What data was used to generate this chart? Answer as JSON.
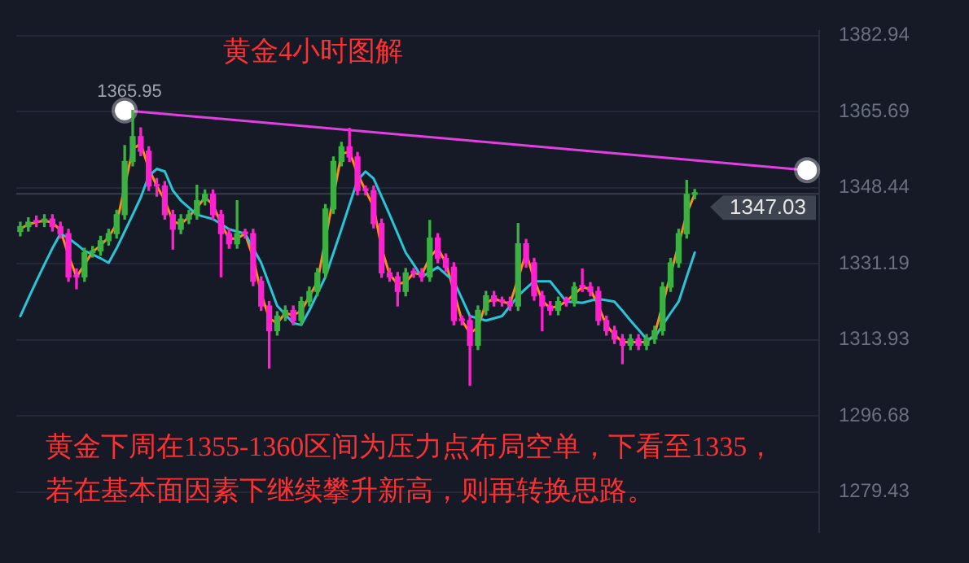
{
  "chart_data": {
    "type": "candlestick",
    "title": "黄金4小时图解",
    "annotations": [
      {
        "text": "1365.95",
        "y": 1365.95
      },
      "黄金下周在1355-1360区间为压力点布局空单，下看至1335，",
      "若在基本面因素下继续攀升新高，则再转换思路。"
    ],
    "categories": [
      null,
      null,
      null,
      null,
      null,
      null,
      null,
      null,
      null,
      null,
      null,
      null,
      null,
      null,
      null,
      null,
      null,
      null,
      null,
      null,
      null,
      null,
      null,
      null,
      null,
      null,
      null,
      null,
      null,
      null,
      null,
      null,
      null,
      null,
      null,
      null,
      null,
      null,
      null,
      null,
      null,
      null,
      null,
      null,
      null,
      null,
      null,
      null,
      null,
      null,
      null,
      null,
      null,
      null,
      null,
      null,
      null,
      null,
      null,
      null,
      null,
      null,
      null,
      null,
      null,
      null,
      null,
      null,
      null,
      null,
      null,
      null,
      null,
      null,
      null,
      null,
      null,
      null,
      null,
      null,
      null,
      null,
      null,
      null,
      null,
      null,
      null,
      null,
      null,
      null,
      null,
      null,
      null,
      null,
      null,
      null,
      null,
      null,
      null,
      null
    ],
    "ohlc": [
      [
        1338.5,
        1340.6,
        1337.5,
        1339.6
      ],
      [
        1339.6,
        1341.6,
        1338.6,
        1340.6
      ],
      [
        1340.6,
        1342.0,
        1339.6,
        1340.6
      ],
      [
        1340.6,
        1342.3,
        1339.6,
        1341.3
      ],
      [
        1341.3,
        1342.3,
        1338.6,
        1339.6
      ],
      [
        1339.6,
        1340.6,
        1337.0,
        1338.0
      ],
      [
        1338.0,
        1339.0,
        1327.2,
        1328.2
      ],
      [
        1328.2,
        1330.0,
        1325.5,
        1328.2
      ],
      [
        1328.2,
        1334.7,
        1327.2,
        1333.7
      ],
      [
        1333.7,
        1335.1,
        1332.7,
        1334.1
      ],
      [
        1334.1,
        1337.4,
        1333.1,
        1336.4
      ],
      [
        1336.4,
        1339.0,
        1335.4,
        1338.0
      ],
      [
        1338.0,
        1343.3,
        1337.0,
        1342.3
      ],
      [
        1342.3,
        1358.0,
        1341.3,
        1354.4
      ],
      [
        1354.4,
        1365.95,
        1353.4,
        1360.0
      ],
      [
        1360.0,
        1362.0,
        1355.7,
        1356.7
      ],
      [
        1356.7,
        1357.7,
        1347.8,
        1348.8
      ],
      [
        1348.8,
        1350.5,
        1346.5,
        1348.8
      ],
      [
        1348.8,
        1349.8,
        1341.3,
        1342.3
      ],
      [
        1342.3,
        1343.3,
        1334.5,
        1339.0
      ],
      [
        1339.0,
        1342.3,
        1338.0,
        1341.3
      ],
      [
        1341.3,
        1343.3,
        1340.3,
        1342.3
      ],
      [
        1342.3,
        1349.0,
        1341.3,
        1345.5
      ],
      [
        1345.5,
        1347.9,
        1344.5,
        1346.9
      ],
      [
        1346.9,
        1347.9,
        1341.3,
        1342.3
      ],
      [
        1342.3,
        1343.3,
        1328.2,
        1338.0
      ],
      [
        1338.0,
        1339.0,
        1334.7,
        1335.7
      ],
      [
        1335.7,
        1345.5,
        1334.7,
        1338.0
      ],
      [
        1338.0,
        1339.0,
        1337.0,
        1338.0
      ],
      [
        1338.0,
        1339.0,
        1326.2,
        1327.2
      ],
      [
        1327.2,
        1328.2,
        1320.6,
        1321.6
      ],
      [
        1321.6,
        1322.6,
        1307.5,
        1316.0
      ],
      [
        1316.0,
        1320.3,
        1315.0,
        1319.3
      ],
      [
        1319.3,
        1321.6,
        1318.3,
        1320.6
      ],
      [
        1320.6,
        1321.6,
        1317.3,
        1318.3
      ],
      [
        1318.3,
        1323.6,
        1317.3,
        1322.6
      ],
      [
        1322.6,
        1325.9,
        1321.6,
        1324.9
      ],
      [
        1324.9,
        1330.1,
        1323.9,
        1329.1
      ],
      [
        1329.1,
        1344.6,
        1328.1,
        1343.6
      ],
      [
        1343.6,
        1355.4,
        1342.6,
        1354.4
      ],
      [
        1354.4,
        1358.7,
        1353.4,
        1357.7
      ],
      [
        1357.7,
        1361.9,
        1354.4,
        1355.4
      ],
      [
        1355.4,
        1356.4,
        1346.8,
        1347.8
      ],
      [
        1347.8,
        1348.8,
        1346.8,
        1347.8
      ],
      [
        1347.8,
        1348.8,
        1339.3,
        1340.3
      ],
      [
        1340.3,
        1341.3,
        1328.1,
        1329.1
      ],
      [
        1329.1,
        1330.1,
        1327.2,
        1328.2
      ],
      [
        1328.2,
        1329.2,
        1321.6,
        1324.9
      ],
      [
        1324.9,
        1330.1,
        1323.9,
        1329.1
      ],
      [
        1329.1,
        1330.1,
        1328.1,
        1329.1
      ],
      [
        1329.1,
        1330.1,
        1327.2,
        1328.2
      ],
      [
        1328.2,
        1341.0,
        1327.2,
        1337.0
      ],
      [
        1337.0,
        1338.0,
        1331.4,
        1332.4
      ],
      [
        1332.4,
        1333.4,
        1329.4,
        1330.4
      ],
      [
        1330.4,
        1331.4,
        1317.3,
        1318.3
      ],
      [
        1318.3,
        1319.3,
        1317.3,
        1318.3
      ],
      [
        1318.3,
        1319.3,
        1303.6,
        1312.7
      ],
      [
        1312.7,
        1321.6,
        1311.7,
        1320.6
      ],
      [
        1320.6,
        1324.9,
        1319.6,
        1323.9
      ],
      [
        1323.9,
        1324.9,
        1321.6,
        1322.6
      ],
      [
        1322.6,
        1323.6,
        1321.6,
        1322.6
      ],
      [
        1322.6,
        1323.6,
        1320.6,
        1321.6
      ],
      [
        1321.6,
        1340.3,
        1320.6,
        1335.7
      ],
      [
        1335.7,
        1336.7,
        1330.4,
        1331.4
      ],
      [
        1331.4,
        1332.4,
        1322.9,
        1323.9
      ],
      [
        1323.9,
        1324.9,
        1316.0,
        1321.6
      ],
      [
        1321.6,
        1322.6,
        1319.6,
        1320.6
      ],
      [
        1320.6,
        1323.6,
        1319.6,
        1322.6
      ],
      [
        1322.6,
        1323.6,
        1321.6,
        1322.6
      ],
      [
        1322.6,
        1326.9,
        1321.6,
        1325.9
      ],
      [
        1325.9,
        1330.0,
        1324.9,
        1325.9
      ],
      [
        1325.9,
        1326.9,
        1323.9,
        1324.9
      ],
      [
        1324.9,
        1325.9,
        1317.3,
        1318.3
      ],
      [
        1318.3,
        1319.3,
        1315.0,
        1316.0
      ],
      [
        1316.0,
        1317.0,
        1313.1,
        1314.1
      ],
      [
        1314.1,
        1315.1,
        1308.5,
        1312.7
      ],
      [
        1312.7,
        1315.1,
        1311.7,
        1314.1
      ],
      [
        1314.1,
        1315.1,
        1311.7,
        1312.7
      ],
      [
        1312.7,
        1315.1,
        1311.7,
        1314.1
      ],
      [
        1314.1,
        1317.0,
        1313.1,
        1316.0
      ],
      [
        1316.0,
        1326.9,
        1315.0,
        1325.9
      ],
      [
        1325.9,
        1332.4,
        1324.9,
        1331.4
      ],
      [
        1331.4,
        1339.0,
        1330.4,
        1338.0
      ],
      [
        1338.0,
        1350.1,
        1337.0,
        1346.9
      ],
      [
        1346.9,
        1348.0,
        1345.9,
        1347.03
      ],
      null,
      null,
      null,
      null,
      null,
      null,
      null,
      null,
      null,
      null,
      null,
      null,
      null,
      null,
      null
    ],
    "colors": [
      "#3cb043",
      "#3cb043",
      "#ff20d0",
      "#3cb043",
      "#ff20d0",
      "#ff20d0",
      "#ff20d0",
      "#ff20d0",
      "#3cb043",
      "#3cb043",
      "#3cb043",
      "#3cb043",
      "#3cb043",
      "#3cb043",
      "#3cb043",
      "#ff20d0",
      "#ff20d0",
      "#ff20d0",
      "#ff20d0",
      "#ff20d0",
      "#3cb043",
      "#3cb043",
      "#3cb043",
      "#3cb043",
      "#ff20d0",
      "#ff20d0",
      "#ff20d0",
      "#3cb043",
      "#ff20d0",
      "#ff20d0",
      "#ff20d0",
      "#ff20d0",
      "#3cb043",
      "#3cb043",
      "#ff20d0",
      "#3cb043",
      "#3cb043",
      "#3cb043",
      "#3cb043",
      "#3cb043",
      "#3cb043",
      "#ff20d0",
      "#ff20d0",
      "#ff20d0",
      "#ff20d0",
      "#ff20d0",
      "#ff20d0",
      "#ff20d0",
      "#3cb043",
      "#ff20d0",
      "#ff20d0",
      "#3cb043",
      "#ff20d0",
      "#ff20d0",
      "#ff20d0",
      "#ff20d0",
      "#ff20d0",
      "#3cb043",
      "#3cb043",
      "#ff20d0",
      "#ff20d0",
      "#ff20d0",
      "#3cb043",
      "#ff20d0",
      "#ff20d0",
      "#ff20d0",
      "#ff20d0",
      "#3cb043",
      "#ff20d0",
      "#3cb043",
      "#ff20d0",
      "#ff20d0",
      "#ff20d0",
      "#ff20d0",
      "#ff20d0",
      "#ff20d0",
      "#3cb043",
      "#ff20d0",
      "#3cb043",
      "#3cb043",
      "#3cb043",
      "#3cb043",
      "#3cb043",
      "#3cb043",
      "#3cb043",
      null,
      null,
      null,
      null,
      null,
      null,
      null,
      null,
      null,
      null,
      null,
      null,
      null,
      null,
      null
    ],
    "series": [
      {
        "type": "line",
        "color": "#29c5d6",
        "values": [
          1319.3,
          1323.3,
          1327.2,
          1331.0,
          1334.7,
          1338.0,
          1337.0,
          1335.6,
          1334.1,
          1333.3,
          1332.4,
          1331.4,
          1334.7,
          1338.5,
          1342.3,
          1346.2,
          1351.1,
          1352.7,
          1352.1,
          1347.8,
          1345.5,
          1343.9,
          1342.3,
          1341.8,
          1341.3,
          1340.2,
          1339.0,
          1338.5,
          1338.0,
          1334.7,
          1331.4,
          1326.5,
          1321.6,
          1319.7,
          1317.7,
          1317.3,
          1320.6,
          1324.4,
          1328.2,
          1333.6,
          1339.0,
          1344.6,
          1350.1,
          1352.1,
          1350.5,
          1346.4,
          1342.3,
          1338.0,
          1333.7,
          1331.0,
          1328.2,
          1329.3,
          1330.4,
          1328.8,
          1327.2,
          1323.3,
          1319.3,
          1318.8,
          1318.3,
          1318.8,
          1319.3,
          1321.6,
          1323.9,
          1325.6,
          1327.2,
          1327.2,
          1327.2,
          1324.9,
          1322.6,
          1322.5,
          1322.3,
          1322.8,
          1323.2,
          1322.9,
          1322.6,
          1320.5,
          1318.3,
          1316.2,
          1314.1,
          1314.4,
          1317.3,
          1320.0,
          1322.6,
          1328.2,
          1333.7,
          null,
          null,
          null,
          null,
          null,
          null,
          null,
          null,
          null,
          null,
          null,
          null,
          null,
          null,
          null
        ]
      },
      {
        "type": "line",
        "color": "#ff8c1a",
        "values": [
          1339.1,
          1340.1,
          1340.6,
          1341.0,
          1340.5,
          1338.8,
          1333.1,
          1328.2,
          1331.0,
          1333.9,
          1335.3,
          1337.2,
          1340.2,
          null,
          1357.2,
          1358.4,
          1352.8,
          1348.8,
          1345.6,
          1340.7,
          1340.2,
          1341.8,
          1343.9,
          1346.2,
          1344.6,
          1340.2,
          1336.9,
          1336.9,
          1338.0,
          1332.6,
          1324.4,
          1318.8,
          1317.7,
          1320.0,
          1319.5,
          1320.5,
          1323.8,
          1327.0,
          null,
          null,
          1356.1,
          1356.6,
          1351.6,
          1347.8,
          1344.1,
          1334.7,
          1328.7,
          1326.6,
          1327.0,
          1329.1,
          1328.7,
          1332.6,
          1334.7,
          1331.4,
          null,
          1318.3,
          1315.5,
          1316.7,
          1322.3,
          1323.3,
          1322.6,
          1322.1,
          null,
          1333.6,
          1327.7,
          1322.8,
          1321.1,
          1321.6,
          1322.6,
          1324.3,
          1325.9,
          1325.4,
          1321.6,
          1317.2,
          1315.1,
          1313.4,
          1313.4,
          1313.4,
          1313.4,
          1315.1,
          null,
          null,
          null,
          1342.5,
          1347.0,
          null,
          null,
          null,
          null,
          null,
          null,
          null,
          null,
          null,
          null,
          null,
          null,
          null,
          null,
          null
        ]
      },
      {
        "type": "line",
        "color": "#e040e0",
        "marker": "circle",
        "values": [
          null,
          null,
          null,
          null,
          null,
          null,
          null,
          null,
          null,
          null,
          null,
          null,
          null,
          1365.95,
          null,
          null,
          null,
          null,
          null,
          null,
          null,
          null,
          null,
          null,
          null,
          null,
          null,
          null,
          null,
          null,
          null,
          null,
          null,
          null,
          null,
          null,
          null,
          null,
          null,
          null,
          null,
          null,
          null,
          null,
          null,
          null,
          null,
          null,
          null,
          null,
          null,
          null,
          null,
          null,
          null,
          null,
          null,
          null,
          null,
          null,
          null,
          null,
          null,
          null,
          null,
          null,
          null,
          null,
          null,
          null,
          null,
          null,
          null,
          null,
          null,
          null,
          null,
          null,
          null,
          null,
          null,
          null,
          null,
          null,
          null,
          null,
          null,
          null,
          null,
          null,
          null,
          null,
          null,
          null,
          null,
          null,
          null,
          null,
          1352.4,
          null
        ]
      }
    ],
    "ylim": [
      1270.4,
      1383.9
    ],
    "yticks": [
      1279.43,
      1296.68,
      1313.93,
      1331.19,
      1348.44,
      1365.69,
      1382.94
    ],
    "ref_lines": [
      {
        "axis": "y",
        "value": 1347.03,
        "label": "1347.03",
        "color": "#3a3f4c"
      }
    ],
    "grid": "y",
    "legend": false,
    "tick_labels": "y"
  }
}
